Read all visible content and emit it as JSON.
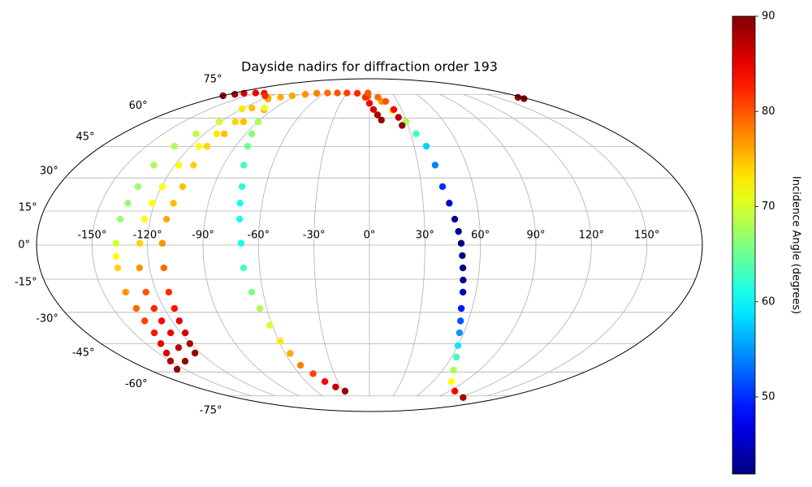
{
  "chart_data": {
    "type": "scatter",
    "projection": "mollweide",
    "title": "Dayside nadirs for diffraction order 193",
    "xlim": [
      -180,
      180
    ],
    "ylim": [
      -90,
      90
    ],
    "xticks": [
      {
        "value": -150,
        "label": "-150°"
      },
      {
        "value": -120,
        "label": "-120°"
      },
      {
        "value": -90,
        "label": "-90°"
      },
      {
        "value": -60,
        "label": "-60°"
      },
      {
        "value": -30,
        "label": "-30°"
      },
      {
        "value": 0,
        "label": "0°"
      },
      {
        "value": 30,
        "label": "30°"
      },
      {
        "value": 60,
        "label": "60°"
      },
      {
        "value": 90,
        "label": "90°"
      },
      {
        "value": 120,
        "label": "120°"
      },
      {
        "value": 150,
        "label": "150°"
      }
    ],
    "yticks": [
      {
        "value": -75,
        "label": "-75°"
      },
      {
        "value": -60,
        "label": "-60°"
      },
      {
        "value": -45,
        "label": "-45°"
      },
      {
        "value": -30,
        "label": "-30°"
      },
      {
        "value": -15,
        "label": "-15°"
      },
      {
        "value": 0,
        "label": "0°"
      },
      {
        "value": 15,
        "label": "15°"
      },
      {
        "value": 30,
        "label": "30°"
      },
      {
        "value": 45,
        "label": "45°"
      },
      {
        "value": 60,
        "label": "60°"
      },
      {
        "value": 75,
        "label": "75°"
      }
    ],
    "grid": true,
    "colorbar": {
      "label": "Incidence Angle (degrees)",
      "colormap": "jet",
      "lim": [
        41.9,
        90
      ],
      "ticks": [
        50,
        60,
        70,
        80,
        90
      ]
    },
    "series": [
      {
        "x": [
          -16.1,
          -2,
          13.0,
          21,
          29.4,
          34,
          38.2,
          40.5,
          42.2,
          44.6,
          46.7,
          48.3,
          49.6,
          50.3,
          51.0,
          51.8,
          52.7,
          53.7,
          55.3,
          57.3,
          60.0,
          63.6,
          69.0,
          77.4,
          96.2,
          126.2
        ],
        "y": [
          75.8,
          73.5,
          70.2,
          64.5,
          58.0,
          51.6,
          45.2,
          36.0,
          26.0,
          18.5,
          11.4,
          6.0,
          0.8,
          -4.6,
          -10.0,
          -15.4,
          -20.8,
          -28.2,
          -34.0,
          -39.7,
          -46.0,
          -51.9,
          -59.0,
          -65.6,
          -71.7,
          -76.2
        ],
        "c": [
          82,
          80,
          77,
          73,
          68,
          63,
          58,
          54,
          50,
          46,
          43,
          42.5,
          42,
          42,
          42,
          43,
          45,
          49,
          52,
          55,
          59,
          63,
          68,
          72,
          84,
          88
        ]
      },
      {
        "x": [
          -119.3,
          -120.0,
          -121.0,
          -126.0,
          -131.1,
          -133.0,
          -133.7,
          -135.0,
          -136.4,
          -137.0,
          -137.2,
          -137.4,
          -137.4,
          -136.3,
          -136.5,
          -136.9,
          -140.0,
          -144.2,
          -150.0,
          -156.3
        ],
        "y": [
          72.9,
          65.5,
          58.0,
          51.5,
          45.2,
          36.0,
          26.0,
          18.5,
          11.4,
          0.8,
          -5.0,
          -10.0,
          -20.8,
          -28.2,
          -34.0,
          -39.7,
          -45.0,
          -49.8,
          -54.0,
          -58.5
        ],
        "c": [
          76,
          73,
          70,
          69,
          68,
          68,
          67,
          67,
          67,
          70,
          72,
          74,
          77,
          79,
          81,
          83,
          85,
          86,
          88,
          89
        ]
      },
      {
        "x": [
          -112.0,
          -108.0,
          -111.0,
          -114.7,
          -117.5,
          -119.6,
          -121.5,
          -123.1,
          -124.2,
          -125.5,
          -126.0,
          -125.9,
          -126.2,
          -126.5,
          -131.0,
          -139.2
        ],
        "y": [
          66.0,
          58.0,
          51.5,
          45.2,
          36.0,
          26.0,
          18.5,
          11.4,
          0.8,
          -10.0,
          -20.8,
          -28.2,
          -34.0,
          -39.7,
          -47.0,
          -54.1
        ],
        "c": [
          75,
          74,
          73,
          72,
          72,
          72,
          72,
          72,
          74,
          77,
          80,
          82,
          84,
          85,
          87,
          89
        ]
      },
      {
        "x": [
          -98.0,
          -101.4,
          -105.5,
          -109.2,
          -108.5,
          -107.9,
          -109.5,
          -111.1,
          -112.0,
          -112.2,
          -113.1,
          -114.0,
          -115.5,
          -117.2,
          -120.5,
          -124.0
        ],
        "y": [
          65.0,
          58.0,
          51.5,
          45.2,
          36.0,
          26.0,
          18.5,
          11.4,
          0.8,
          -10.0,
          -20.8,
          -28.2,
          -34.0,
          -39.7,
          -45.0,
          -49.8
        ],
        "c": [
          76,
          75,
          75,
          74,
          74,
          75,
          75,
          76,
          77,
          79,
          82,
          83,
          85,
          86,
          88,
          89
        ]
      },
      {
        "x": [
          -100.0,
          -89.6,
          -85.5,
          -81.9,
          -77.5,
          -73.6,
          -72.3,
          -71.1,
          -69.4,
          -68.7,
          -66.4,
          -64.1,
          -61.5,
          -59.0,
          -56.5,
          -53.9,
          -48.0,
          -42.1,
          -35.0,
          -27.5
        ],
        "y": [
          66.0,
          58.0,
          51.5,
          45.2,
          36.0,
          26.0,
          18.5,
          11.4,
          0.8,
          -10.0,
          -20.8,
          -28.2,
          -36.0,
          -43.7,
          -50.0,
          -56.3,
          -61.0,
          -65.6,
          -69.0,
          -71.7
        ],
        "c": [
          71,
          68,
          66,
          65,
          63,
          62,
          61,
          61,
          61,
          63,
          66,
          68,
          70,
          73,
          76,
          78,
          81,
          84,
          87,
          89
        ]
      },
      {
        "x": [
          -114.8,
          -105,
          -94.8,
          -82,
          -69.6,
          -56,
          -42.8
        ],
        "y": [
          71.8,
          73,
          74.0,
          75,
          75.8,
          76,
          76
        ],
        "c": [
          76,
          76,
          76,
          77,
          78,
          79,
          80
        ]
      },
      {
        "x": [
          -179.6,
          -172,
          -166.0,
          -152,
          -139.2,
          -128
        ],
        "y": [
          74.0,
          75,
          75.8,
          76,
          75.8,
          74
        ],
        "c": [
          89,
          88,
          86,
          85,
          84,
          82
        ]
      },
      {
        "x": [
          -30,
          -4.8,
          0,
          3.8,
          7,
          9.8
        ],
        "y": [
          76,
          72.9,
          69,
          65.1,
          62,
          59
        ],
        "c": [
          81,
          82,
          84,
          86,
          88,
          89
        ]
      },
      {
        "x": [
          -2,
          10,
          17.4,
          22.7,
          24.5,
          25.4
        ],
        "y": [
          76,
          73,
          70.2,
          65.1,
          60.5,
          56
        ],
        "c": [
          80,
          79,
          80,
          84,
          87,
          89
        ]
      },
      {
        "x": [
          174.7,
          176
        ],
        "y": [
          72.9,
          72
        ],
        "c": [
          89,
          90
        ]
      }
    ]
  }
}
